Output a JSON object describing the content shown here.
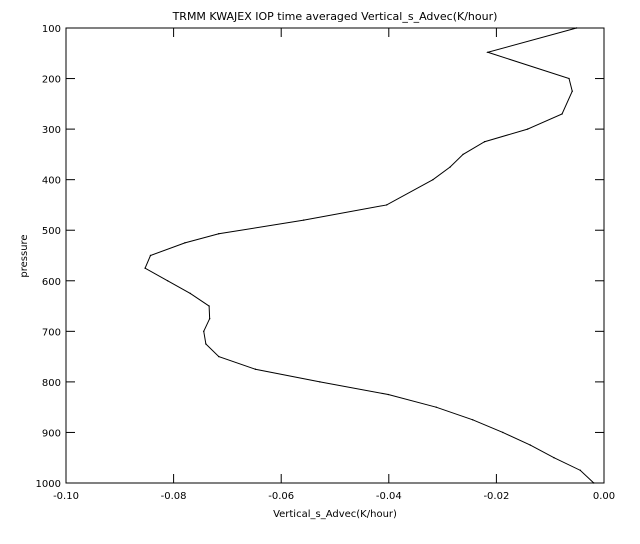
{
  "chart_data": {
    "type": "line",
    "title": "TRMM KWAJEX IOP time averaged Vertical_s_Advec(K/hour)",
    "xlabel": "Vertical_s_Advec(K/hour)",
    "ylabel": "pressure",
    "xlim": [
      -0.1,
      0.0
    ],
    "ylim": [
      1000,
      100
    ],
    "y_inverted": true,
    "grid": false,
    "xticks": [
      -0.1,
      -0.08,
      -0.06,
      -0.04,
      -0.02,
      0.0
    ],
    "xtick_labels": [
      "-0.10",
      "-0.08",
      "-0.06",
      "-0.04",
      "-0.02",
      "0.00"
    ],
    "yticks": [
      100,
      200,
      300,
      400,
      500,
      600,
      700,
      800,
      900,
      1000
    ],
    "ytick_labels": [
      "100",
      "200",
      "300",
      "400",
      "500",
      "600",
      "700",
      "800",
      "900",
      "1000"
    ],
    "series": [
      {
        "color": "#000000",
        "points": [
          {
            "x": -0.0051,
            "y": 100
          },
          {
            "x": -0.0216,
            "y": 148
          },
          {
            "x": -0.0065,
            "y": 200
          },
          {
            "x": -0.0059,
            "y": 225
          },
          {
            "x": -0.0078,
            "y": 270
          },
          {
            "x": -0.0142,
            "y": 300
          },
          {
            "x": -0.0222,
            "y": 325
          },
          {
            "x": -0.0262,
            "y": 350
          },
          {
            "x": -0.0286,
            "y": 375
          },
          {
            "x": -0.0318,
            "y": 400
          },
          {
            "x": -0.0404,
            "y": 450
          },
          {
            "x": -0.0558,
            "y": 480
          },
          {
            "x": -0.0716,
            "y": 507
          },
          {
            "x": -0.0779,
            "y": 525
          },
          {
            "x": -0.0843,
            "y": 550
          },
          {
            "x": -0.0853,
            "y": 575
          },
          {
            "x": -0.0811,
            "y": 600
          },
          {
            "x": -0.0769,
            "y": 625
          },
          {
            "x": -0.0734,
            "y": 650
          },
          {
            "x": -0.0733,
            "y": 675
          },
          {
            "x": -0.0744,
            "y": 700
          },
          {
            "x": -0.074,
            "y": 725
          },
          {
            "x": -0.0716,
            "y": 750
          },
          {
            "x": -0.0648,
            "y": 775
          },
          {
            "x": -0.0528,
            "y": 800
          },
          {
            "x": -0.0401,
            "y": 825
          },
          {
            "x": -0.0312,
            "y": 850
          },
          {
            "x": -0.0244,
            "y": 875
          },
          {
            "x": -0.0188,
            "y": 900
          },
          {
            "x": -0.0137,
            "y": 925
          },
          {
            "x": -0.0093,
            "y": 950
          },
          {
            "x": -0.0044,
            "y": 975
          },
          {
            "x": -0.0019,
            "y": 1000
          }
        ]
      }
    ]
  }
}
